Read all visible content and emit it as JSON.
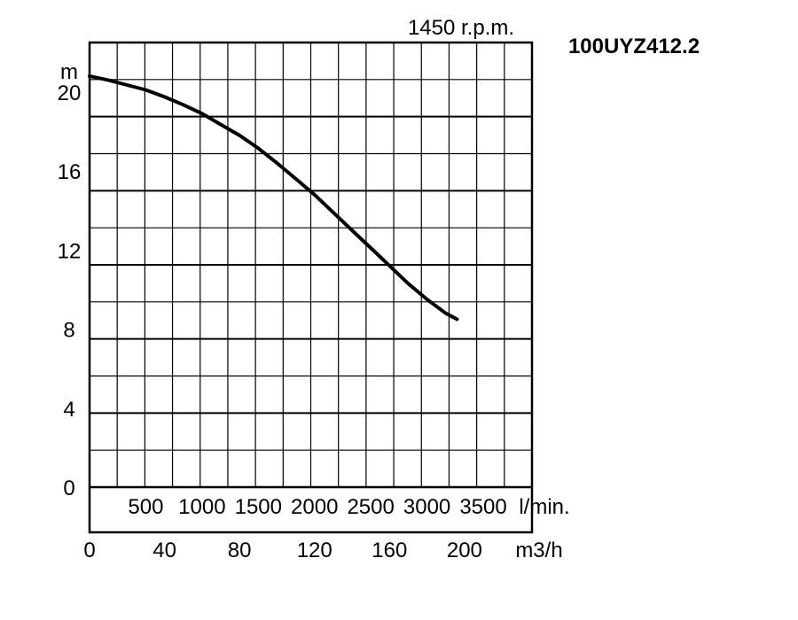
{
  "chart_data": {
    "type": "line",
    "title": "100UYZ412.2",
    "subtitle": "1450 r.p.m.",
    "ylabel": "m",
    "xlabel_primary": "m3/h",
    "xlabel_secondary": "l/min.",
    "ylim": [
      0,
      22.5
    ],
    "xlim": [
      0,
      236
    ],
    "grid": true,
    "y_ticks": [
      0,
      4,
      8,
      12,
      16,
      20
    ],
    "x_ticks": [
      0,
      40,
      80,
      120,
      160,
      200
    ],
    "x2_ticks": [
      500,
      1000,
      1500,
      2000,
      2500,
      3000,
      3500
    ],
    "series": [
      {
        "x": [
          0,
          10,
          20,
          30,
          40,
          50,
          60,
          70,
          80,
          90,
          100,
          110,
          120,
          130,
          140,
          150,
          160,
          170,
          180,
          190,
          196
        ],
        "y": [
          20.8,
          20.6,
          20.35,
          20.1,
          19.75,
          19.35,
          18.9,
          18.35,
          17.8,
          17.15,
          16.4,
          15.6,
          14.8,
          13.9,
          13.0,
          12.1,
          11.2,
          10.3,
          9.5,
          8.8,
          8.5
        ]
      }
    ]
  }
}
